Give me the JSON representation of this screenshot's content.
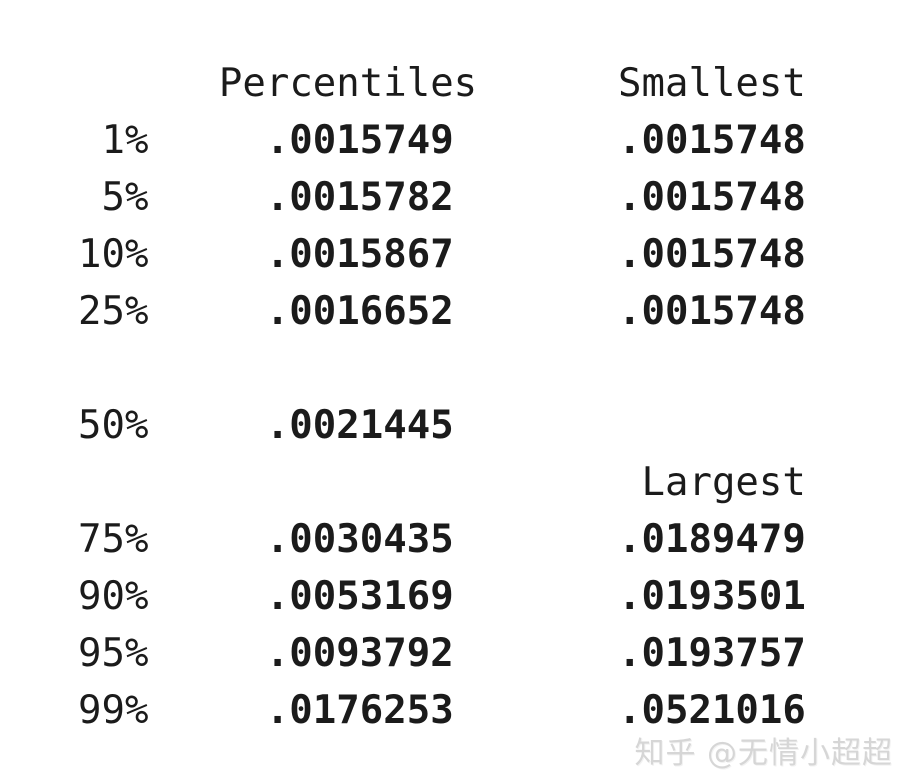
{
  "output": {
    "columns": {
      "percentiles": "Percentiles",
      "smallest": "Smallest",
      "largest": "Largest"
    },
    "rows_top": [
      {
        "pct": "1%",
        "percentile": ".0015749",
        "smallest": ".0015748"
      },
      {
        "pct": "5%",
        "percentile": ".0015782",
        "smallest": ".0015748"
      },
      {
        "pct": "10%",
        "percentile": ".0015867",
        "smallest": ".0015748"
      },
      {
        "pct": "25%",
        "percentile": ".0016652",
        "smallest": ".0015748"
      }
    ],
    "median_row": {
      "pct": "50%",
      "percentile": ".0021445",
      "smallest": ""
    },
    "rows_bottom": [
      {
        "pct": "75%",
        "percentile": ".0030435",
        "largest": ".0189479"
      },
      {
        "pct": "90%",
        "percentile": ".0053169",
        "largest": ".0193501"
      },
      {
        "pct": "95%",
        "percentile": ".0093792",
        "largest": ".0193757"
      },
      {
        "pct": "99%",
        "percentile": ".0176253",
        "largest": ".0521016"
      }
    ]
  },
  "watermark": {
    "text": "知乎 @无情小超超"
  },
  "colors": {
    "text": "#1b1b1b",
    "value_text": "#1b1b1b",
    "watermark": "#d6d6d6",
    "background": "#ffffff"
  }
}
